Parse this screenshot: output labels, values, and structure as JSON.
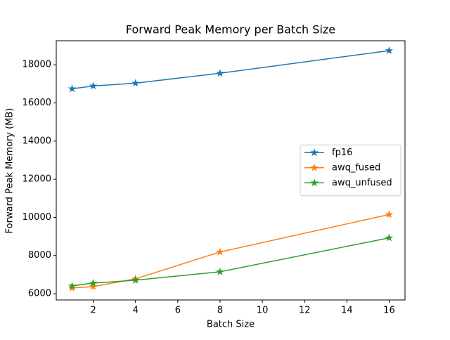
{
  "chart_data": {
    "type": "line",
    "title": "Forward Peak Memory per Batch Size",
    "x_label": "Batch Size",
    "y_label": "Forward Peak Memory (MB)",
    "x": [
      1,
      2,
      4,
      8,
      16
    ],
    "series": [
      {
        "name": "fp16",
        "color": "#1f77b4",
        "values": [
          16741,
          16889,
          17037,
          17556,
          18741
        ]
      },
      {
        "name": "awq_fused",
        "color": "#ff7f0e",
        "values": [
          6296,
          6370,
          6778,
          8185,
          10148
        ]
      },
      {
        "name": "awq_unfused",
        "color": "#2ca02c",
        "values": [
          6407,
          6556,
          6704,
          7148,
          8926
        ]
      }
    ],
    "xlim": [
      0.25,
      16.75
    ],
    "xticks": [
      2,
      4,
      6,
      8,
      10,
      12,
      14,
      16
    ],
    "ylim": [
      5670,
      19260
    ],
    "yticks": [
      6000,
      8000,
      10000,
      12000,
      14000,
      16000,
      18000
    ],
    "grid": false,
    "legend": "center right",
    "marker": "star"
  }
}
